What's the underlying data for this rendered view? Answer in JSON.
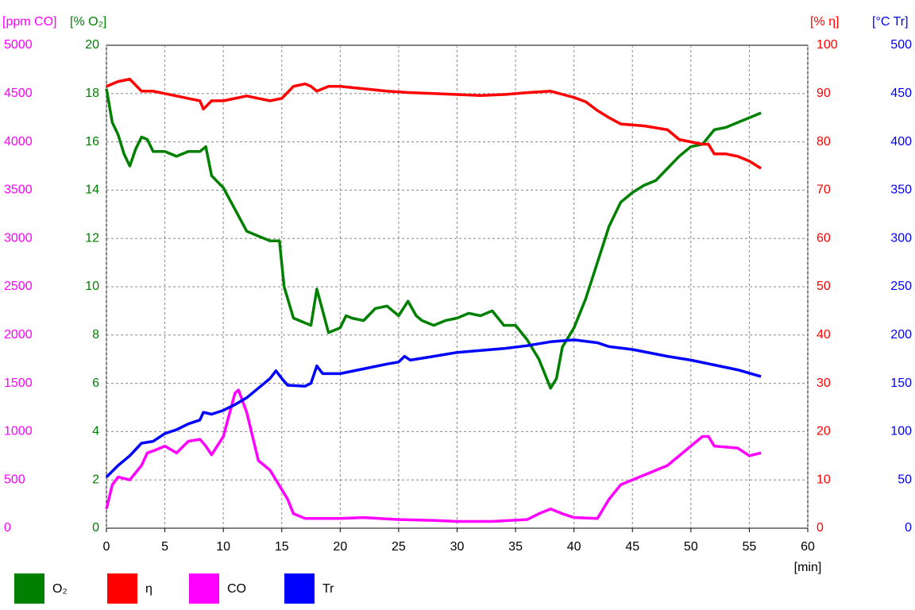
{
  "chart_data": {
    "type": "line",
    "xlim": [
      0,
      60
    ],
    "xticks": [
      0,
      5,
      10,
      15,
      20,
      25,
      30,
      35,
      40,
      45,
      50,
      55,
      60
    ],
    "xlabel": "[min]",
    "grid": true,
    "axes": [
      {
        "label": "[ppm CO]",
        "color": "#ff00ff",
        "lim": [
          0,
          5000
        ],
        "ticks": [
          0,
          500,
          1000,
          1500,
          2000,
          2500,
          3000,
          3500,
          4000,
          4500,
          5000
        ]
      },
      {
        "label": "[% O₂]",
        "color": "#008000",
        "lim": [
          0,
          20
        ],
        "ticks": [
          0,
          2,
          4,
          6,
          8,
          10,
          12,
          14,
          16,
          18,
          20
        ]
      },
      {
        "label": "[% η]",
        "color": "#ff0000",
        "lim": [
          0,
          100
        ],
        "ticks": [
          0,
          10,
          20,
          30,
          40,
          50,
          60,
          70,
          80,
          90,
          100
        ]
      },
      {
        "label": "[°C Tr]",
        "color": "#0000ff",
        "lim": [
          0,
          500
        ],
        "ticks": [
          0,
          50,
          100,
          150,
          200,
          250,
          300,
          350,
          400,
          450,
          500
        ]
      }
    ],
    "series": [
      {
        "name": "O₂",
        "color": "#008000",
        "axis": 1,
        "x": [
          0,
          0.5,
          1,
          1.5,
          2,
          2.5,
          3,
          3.5,
          4,
          5,
          6,
          7,
          8,
          8.5,
          9,
          10,
          11,
          12,
          13,
          14,
          14.8,
          15.2,
          16,
          17,
          17.5,
          18,
          18.5,
          19,
          20,
          20.5,
          21,
          22,
          23,
          24,
          25,
          25.8,
          26.5,
          27,
          28,
          29,
          30,
          31,
          32,
          33,
          34,
          35,
          36,
          37,
          38,
          38.5,
          39,
          40,
          41,
          42,
          43,
          44,
          45,
          46,
          47,
          48,
          49,
          50,
          51,
          52,
          53,
          54,
          55,
          56
        ],
        "values": [
          18.2,
          16.8,
          16.3,
          15.5,
          15.0,
          15.7,
          16.2,
          16.1,
          15.6,
          15.6,
          15.4,
          15.6,
          15.6,
          15.8,
          14.6,
          14.1,
          13.2,
          12.3,
          12.1,
          11.9,
          11.9,
          10.0,
          8.7,
          8.5,
          8.4,
          9.9,
          9.0,
          8.1,
          8.3,
          8.8,
          8.7,
          8.6,
          9.1,
          9.2,
          8.8,
          9.4,
          8.8,
          8.6,
          8.4,
          8.6,
          8.7,
          8.9,
          8.8,
          9.0,
          8.4,
          8.4,
          7.8,
          7.0,
          5.8,
          6.2,
          7.5,
          8.3,
          9.5,
          11.0,
          12.5,
          13.5,
          13.9,
          14.2,
          14.4,
          14.9,
          15.4,
          15.8,
          15.9,
          16.5,
          16.6,
          16.8,
          17.0,
          17.2
        ]
      },
      {
        "name": "η",
        "color": "#ff0000",
        "axis": 2,
        "x": [
          0,
          1,
          2,
          3,
          4,
          5,
          6,
          7,
          8,
          8.3,
          9,
          10,
          11,
          12,
          13,
          14,
          15,
          16,
          17,
          17.5,
          18,
          19,
          20,
          22,
          24,
          26,
          28,
          30,
          32,
          34,
          36,
          38,
          40,
          41,
          42,
          43,
          44,
          46,
          48,
          49,
          50,
          51,
          51.5,
          52,
          53,
          54,
          55,
          56
        ],
        "values": [
          91.5,
          92.5,
          93.0,
          90.5,
          90.5,
          90.0,
          89.5,
          89.0,
          88.5,
          86.8,
          88.5,
          88.5,
          89,
          89.5,
          89,
          88.5,
          89,
          91.5,
          92,
          91.5,
          90.5,
          91.5,
          91.5,
          91,
          90.5,
          90.2,
          90,
          89.8,
          89.6,
          89.8,
          90.2,
          90.5,
          89.2,
          88.3,
          86.5,
          85,
          83.7,
          83.3,
          82.5,
          80.5,
          80,
          79.5,
          79.5,
          77.5,
          77.5,
          77,
          76,
          74.5
        ]
      },
      {
        "name": "CO",
        "color": "#ff00ff",
        "axis": 0,
        "x": [
          0,
          0.5,
          1,
          2,
          3,
          3.5,
          4,
          5,
          6,
          7,
          8,
          8.5,
          9,
          10,
          11,
          11.3,
          12,
          13,
          14,
          15,
          15.5,
          16,
          17,
          20,
          22,
          25,
          28,
          30,
          33,
          36,
          37,
          38,
          39,
          40,
          42,
          43,
          44,
          46,
          48,
          50,
          51,
          51.5,
          52,
          54,
          55,
          56
        ],
        "values": [
          200,
          450,
          530,
          500,
          650,
          780,
          800,
          850,
          780,
          900,
          920,
          850,
          760,
          950,
          1400,
          1430,
          1200,
          700,
          600,
          400,
          300,
          150,
          100,
          100,
          110,
          90,
          80,
          70,
          70,
          90,
          150,
          200,
          150,
          110,
          100,
          300,
          450,
          550,
          650,
          850,
          950,
          950,
          850,
          830,
          750,
          780
        ]
      },
      {
        "name": "Tr",
        "color": "#0000ff",
        "axis": 3,
        "x": [
          0,
          1,
          2,
          3,
          4,
          5,
          6,
          7,
          8,
          8.3,
          9,
          10,
          11,
          12,
          13,
          14,
          14.5,
          15,
          15.5,
          17,
          17.5,
          18,
          18.5,
          20,
          22,
          24,
          25,
          25.5,
          26,
          28,
          30,
          32,
          34,
          36,
          38,
          40,
          42,
          43,
          45,
          48,
          50,
          52,
          54,
          56
        ],
        "values": [
          53,
          65,
          75,
          88,
          90,
          98,
          102,
          108,
          112,
          120,
          118,
          122,
          128,
          135,
          145,
          155,
          163,
          155,
          148,
          147,
          150,
          168,
          160,
          160,
          165,
          170,
          172,
          178,
          174,
          178,
          182,
          184,
          186,
          189,
          193,
          195,
          192,
          188,
          185,
          178,
          174,
          169,
          164,
          157
        ]
      }
    ]
  }
}
